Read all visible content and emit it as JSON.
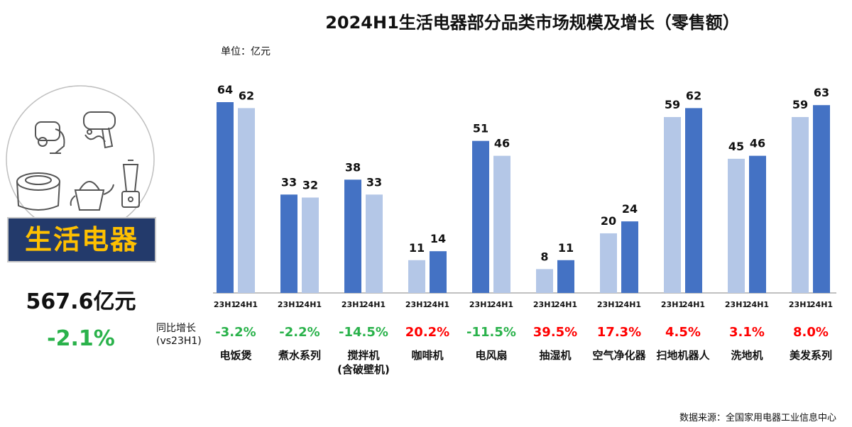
{
  "page": {
    "title": "2024H1生活电器部分品类市场规模及增长（零售额）",
    "unit": "单位：亿元",
    "banner": "生活电器",
    "total": "567.6亿元",
    "total_growth": "-2.1%",
    "yoy_label_line1": "同比增长",
    "yoy_label_line2": "(vs23H1)",
    "source": "数据来源：全国家用电器工业信息中心"
  },
  "colors": {
    "light_bar": "#b4c7e7",
    "dark_bar": "#4472c4",
    "negative": "#2ab24b",
    "positive": "#ff0000",
    "banner_bg": "#233a6b",
    "banner_text": "#ffc000"
  },
  "icons": [
    "vacuum-icon",
    "hair-dryer-icon",
    "rice-cooker-icon",
    "kettle-icon",
    "blender-icon"
  ],
  "chart_data": {
    "type": "bar",
    "period_labels": [
      "23H1",
      "24H1"
    ],
    "categories": [
      {
        "name": [
          "电饭煲"
        ],
        "v23": 64,
        "v24": 62,
        "growth": "-3.2%",
        "sign": "negative"
      },
      {
        "name": [
          "煮水系列"
        ],
        "v23": 33,
        "v24": 32,
        "growth": "-2.2%",
        "sign": "negative"
      },
      {
        "name": [
          "搅拌机",
          "(含破壁机)"
        ],
        "v23": 38,
        "v24": 33,
        "growth": "-14.5%",
        "sign": "negative"
      },
      {
        "name": [
          "咖啡机"
        ],
        "v23": 11,
        "v24": 14,
        "growth": "20.2%",
        "sign": "positive"
      },
      {
        "name": [
          "电风扇"
        ],
        "v23": 51,
        "v24": 46,
        "growth": "-11.5%",
        "sign": "negative"
      },
      {
        "name": [
          "抽湿机"
        ],
        "v23": 8,
        "v24": 11,
        "growth": "39.5%",
        "sign": "positive"
      },
      {
        "name": [
          "空气净化器"
        ],
        "v23": 20,
        "v24": 24,
        "growth": "17.3%",
        "sign": "positive"
      },
      {
        "name": [
          "扫地机器人"
        ],
        "v23": 59,
        "v24": 62,
        "growth": "4.5%",
        "sign": "positive"
      },
      {
        "name": [
          "洗地机"
        ],
        "v23": 45,
        "v24": 46,
        "growth": "3.1%",
        "sign": "positive"
      },
      {
        "name": [
          "美发系列"
        ],
        "v23": 59,
        "v24": 63,
        "growth": "8.0%",
        "sign": "positive"
      }
    ],
    "ylim": [
      0,
      64
    ],
    "grid": false
  }
}
